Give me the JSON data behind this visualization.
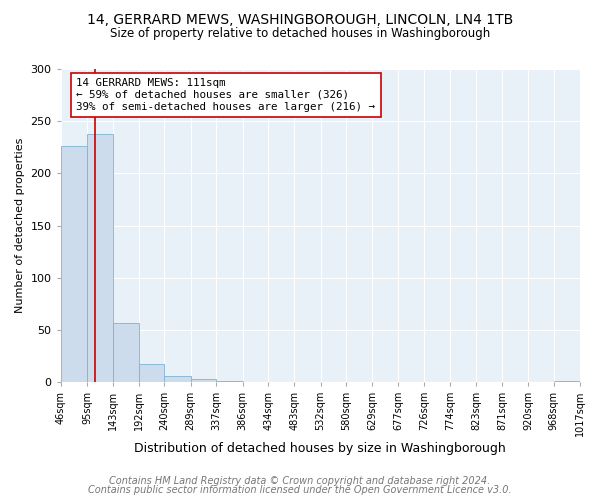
{
  "title": "14, GERRARD MEWS, WASHINGBOROUGH, LINCOLN, LN4 1TB",
  "subtitle": "Size of property relative to detached houses in Washingborough",
  "xlabel": "Distribution of detached houses by size in Washingborough",
  "ylabel": "Number of detached properties",
  "bar_edges": [
    46,
    95,
    143,
    192,
    240,
    289,
    337,
    386,
    434,
    483,
    532,
    580,
    629,
    677,
    726,
    774,
    823,
    871,
    920,
    968,
    1017
  ],
  "bar_heights": [
    226,
    238,
    57,
    17,
    6,
    3,
    1,
    0,
    0,
    0,
    0,
    0,
    0,
    0,
    0,
    0,
    0,
    0,
    0,
    1
  ],
  "bar_color": "#cddcec",
  "bar_edgecolor": "#7fb3d3",
  "vline_x": 111,
  "vline_color": "#cc0000",
  "annotation_text": "14 GERRARD MEWS: 111sqm\n← 59% of detached houses are smaller (326)\n39% of semi-detached houses are larger (216) →",
  "annotation_box_edgecolor": "#cc0000",
  "annotation_box_facecolor": "#ffffff",
  "ylim": [
    0,
    300
  ],
  "yticks": [
    0,
    50,
    100,
    150,
    200,
    250,
    300
  ],
  "tick_labels": [
    "46sqm",
    "95sqm",
    "143sqm",
    "192sqm",
    "240sqm",
    "289sqm",
    "337sqm",
    "386sqm",
    "434sqm",
    "483sqm",
    "532sqm",
    "580sqm",
    "629sqm",
    "677sqm",
    "726sqm",
    "774sqm",
    "823sqm",
    "871sqm",
    "920sqm",
    "968sqm",
    "1017sqm"
  ],
  "footer_line1": "Contains HM Land Registry data © Crown copyright and database right 2024.",
  "footer_line2": "Contains public sector information licensed under the Open Government Licence v3.0.",
  "bg_color": "#ffffff",
  "plot_bg_color": "#e8f0f8",
  "title_fontsize": 10,
  "subtitle_fontsize": 8.5,
  "tick_label_fontsize": 7,
  "axis_label_fontsize": 9,
  "ylabel_fontsize": 8,
  "footer_fontsize": 7
}
